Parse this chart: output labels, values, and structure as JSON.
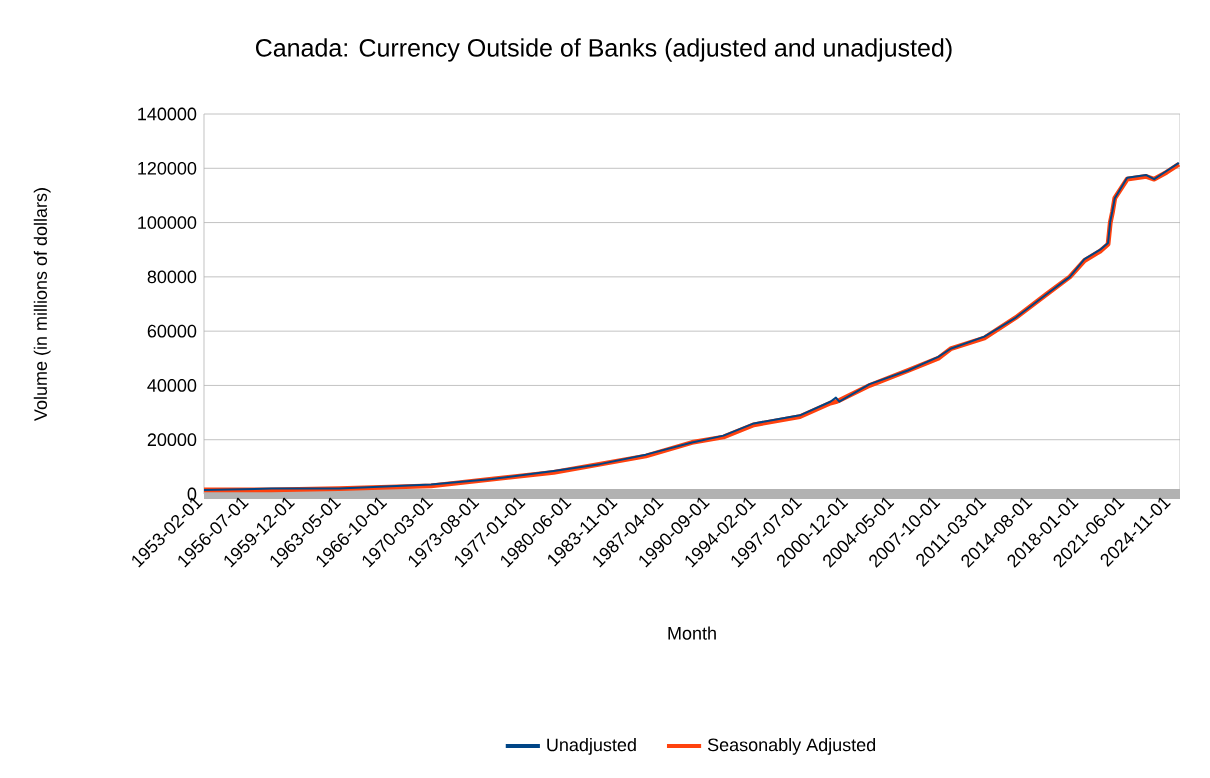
{
  "chart_data": {
    "type": "line",
    "title": "Canada: Currency Outside of Banks (adjusted and unadjusted)",
    "xlabel": "Month",
    "ylabel": "Volume (in millions of dollars)",
    "x": [
      "1953-02",
      "1958-02",
      "1963-02",
      "1969-12",
      "1974-06",
      "1979-01",
      "1982-06",
      "1985-11",
      "1989-04",
      "1991-08",
      "1993-11",
      "1997-04",
      "1999-07",
      "1999-12",
      "2000-03",
      "2002-06",
      "2005-04",
      "2007-07",
      "2008-06",
      "2010-12",
      "2013-04",
      "2015-07",
      "2017-04",
      "2018-05",
      "2019-07",
      "2020-02",
      "2020-04",
      "2020-06",
      "2020-08",
      "2021-07",
      "2022-12",
      "2023-07",
      "2024-06",
      "2025-05"
    ],
    "series": [
      {
        "name": "Unadjusted",
        "color": "#004586",
        "values": [
          1500,
          2000,
          2000,
          3500,
          5500,
          8500,
          11000,
          14500,
          19000,
          21500,
          26000,
          29000,
          34000,
          35500,
          34000,
          40500,
          45500,
          50500,
          53500,
          58000,
          65000,
          73500,
          80000,
          86500,
          90000,
          92500,
          100500,
          104500,
          109000,
          116500,
          117500,
          116000,
          119000,
          122000
        ]
      },
      {
        "name": "Seasonably Adjusted",
        "color": "#ff420e",
        "values": [
          1500,
          1500,
          2000,
          3000,
          5500,
          8000,
          11000,
          14000,
          19000,
          21000,
          25500,
          28500,
          33500,
          34000,
          34500,
          40000,
          45500,
          50000,
          53500,
          57500,
          65000,
          73500,
          80000,
          86000,
          89500,
          92000,
          100000,
          104000,
          109000,
          116000,
          117000,
          116000,
          118500,
          121500
        ]
      }
    ],
    "xlim": [
      "1953-02",
      "2025-06"
    ],
    "xticks": [
      {
        "value": "1953-02",
        "label": "1953-02-01"
      },
      {
        "value": "1956-07",
        "label": "1956-07-01"
      },
      {
        "value": "1959-12",
        "label": "1959-12-01"
      },
      {
        "value": "1963-05",
        "label": "1963-05-01"
      },
      {
        "value": "1966-10",
        "label": "1966-10-01"
      },
      {
        "value": "1970-03",
        "label": "1970-03-01"
      },
      {
        "value": "1973-08",
        "label": "1973-08-01"
      },
      {
        "value": "1977-01",
        "label": "1977-01-01"
      },
      {
        "value": "1980-06",
        "label": "1980-06-01"
      },
      {
        "value": "1983-11",
        "label": "1983-11-01"
      },
      {
        "value": "1987-04",
        "label": "1987-04-01"
      },
      {
        "value": "1990-09",
        "label": "1990-09-01"
      },
      {
        "value": "1994-02",
        "label": "1994-02-01"
      },
      {
        "value": "1997-07",
        "label": "1997-07-01"
      },
      {
        "value": "2000-12",
        "label": "2000-12-01"
      },
      {
        "value": "2004-05",
        "label": "2004-05-01"
      },
      {
        "value": "2007-10",
        "label": "2007-10-01"
      },
      {
        "value": "2011-03",
        "label": "2011-03-01"
      },
      {
        "value": "2014-08",
        "label": "2014-08-01"
      },
      {
        "value": "2018-01",
        "label": "2018-01-01"
      },
      {
        "value": "2021-06",
        "label": "2021-06-01"
      },
      {
        "value": "2024-11",
        "label": "2024-11-01"
      }
    ],
    "ylim": [
      0,
      140000
    ],
    "yticks": [
      0,
      20000,
      40000,
      60000,
      80000,
      100000,
      120000,
      140000
    ],
    "grid": "y",
    "legend": "bottom",
    "marker": "none",
    "line_style": "solid"
  }
}
